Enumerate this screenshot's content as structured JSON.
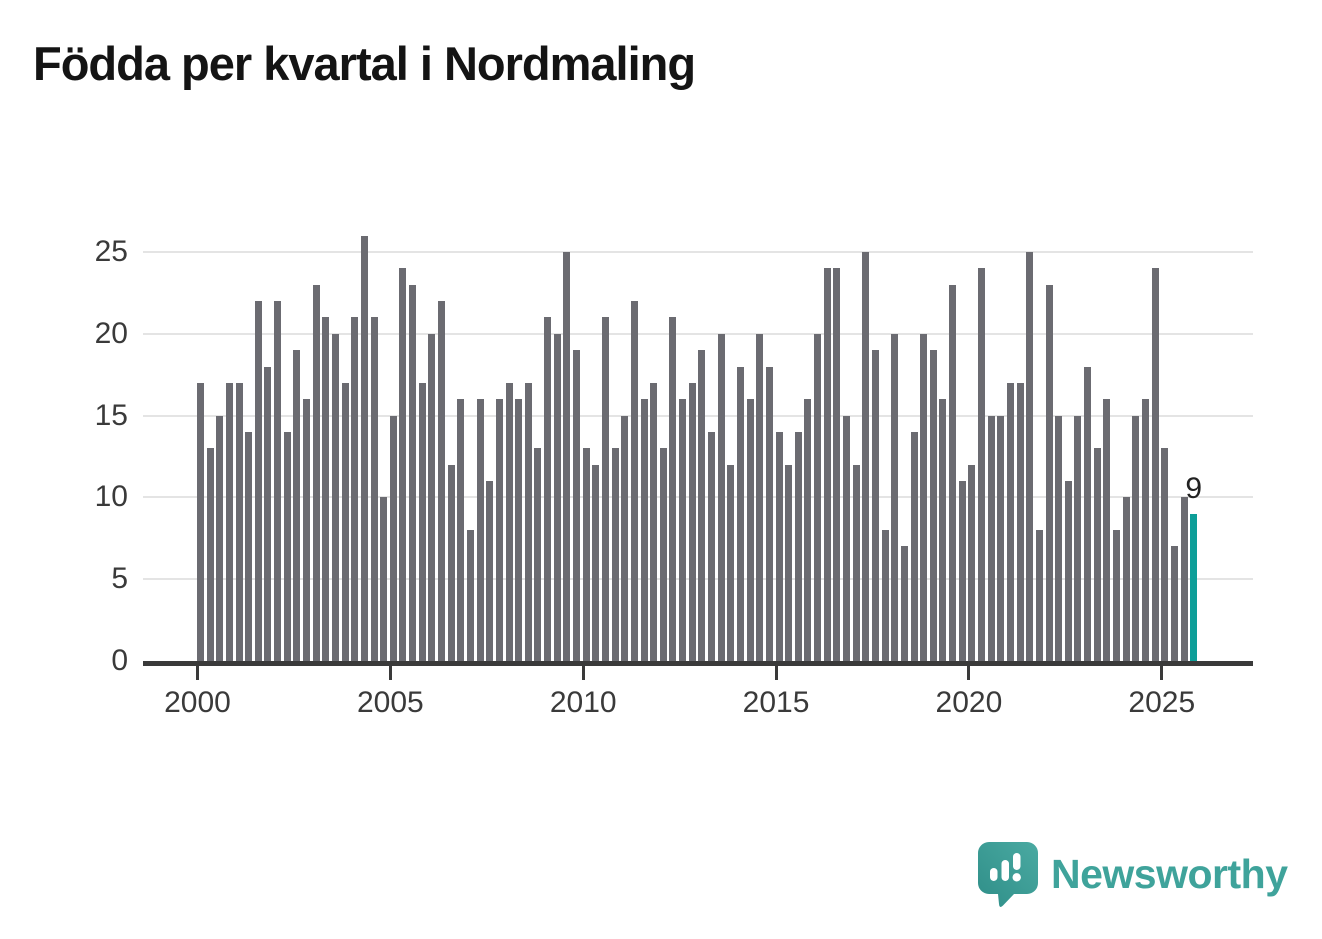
{
  "title": "Födda per kvartal i Nordmaling",
  "chart_data": {
    "type": "bar",
    "title": "Födda per kvartal i Nordmaling",
    "period": "quarterly",
    "start_year": 2000,
    "x_tick_years": [
      2000,
      2005,
      2010,
      2015,
      2020,
      2025
    ],
    "y_ticks": [
      0,
      5,
      10,
      15,
      20,
      25
    ],
    "ylim": [
      0,
      26
    ],
    "grid": true,
    "bar_color": "#6b6b71",
    "highlight_color": "#0d9e98",
    "highlight_index": 103,
    "highlight_label": "9",
    "values": [
      17,
      13,
      15,
      17,
      17,
      14,
      22,
      18,
      22,
      14,
      19,
      16,
      23,
      21,
      20,
      17,
      21,
      26,
      21,
      10,
      15,
      24,
      23,
      17,
      20,
      22,
      12,
      16,
      8,
      16,
      11,
      16,
      17,
      16,
      17,
      13,
      21,
      20,
      25,
      19,
      13,
      12,
      21,
      13,
      15,
      22,
      16,
      17,
      13,
      21,
      16,
      17,
      19,
      14,
      20,
      12,
      18,
      16,
      20,
      18,
      14,
      12,
      14,
      16,
      20,
      24,
      24,
      15,
      12,
      25,
      19,
      8,
      20,
      7,
      14,
      20,
      19,
      16,
      23,
      11,
      12,
      24,
      15,
      15,
      17,
      17,
      25,
      8,
      23,
      15,
      11,
      15,
      18,
      13,
      16,
      8,
      10,
      15,
      16,
      24,
      13,
      7,
      10,
      9
    ]
  },
  "logo": {
    "text": "Newsworthy",
    "color": "#3fa39b"
  }
}
